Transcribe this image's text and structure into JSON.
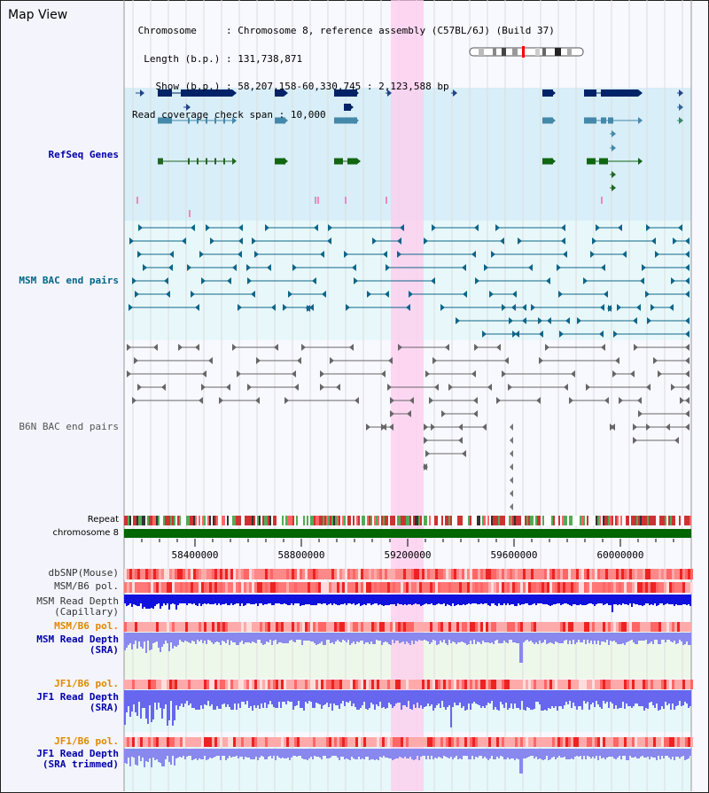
{
  "view": {
    "title": "Map View",
    "chromosome_key": "Chromosome",
    "chromosome_value": "Chromosome 8, reference assembly (C57BL/6J) (Build 37)",
    "length_key": "Length (b.p.)",
    "length_value": "131,738,871",
    "show_key": "Show (b.p.)",
    "show_value": "58,207,158-60,330,745 : 2,123,588 bp",
    "coverage_key": "Read coverage check span",
    "coverage_value": "10,000"
  },
  "tracks": {
    "refseq": {
      "label": "RefSeq Genes",
      "color": "#0000aa"
    },
    "msm_bac": {
      "label": "MSM BAC end pairs",
      "color": "#006688"
    },
    "b6n_bac": {
      "label": "B6N BAC end pairs",
      "color": "#555555"
    },
    "repeat": {
      "label": "Repeat"
    },
    "chromosome": {
      "label": "chromosome 8"
    },
    "dbsnp": {
      "label": "dbSNP(Mouse)"
    },
    "msm_b6_pol_1": {
      "label": "MSM/B6 pol."
    },
    "msm_depth_cap": {
      "label": "MSM Read Depth\n(Capillary)"
    },
    "msm_b6_pol_2": {
      "label": "MSM/B6 pol.",
      "color": "#e08800"
    },
    "msm_depth_sra": {
      "label": "MSM Read Depth\n(SRA)",
      "color": "#0000aa"
    },
    "jf1_b6_pol_1": {
      "label": "JF1/B6 pol.",
      "color": "#e08800"
    },
    "jf1_depth_sra": {
      "label": "JF1 Read Depth\n(SRA)",
      "color": "#0000aa"
    },
    "jf1_b6_pol_2": {
      "label": "JF1/B6 pol.",
      "color": "#e08800"
    },
    "jf1_depth_trim": {
      "label": "JF1 Read Depth\n(SRA trimmed)",
      "color": "#0000aa"
    }
  },
  "axis": {
    "ticks": [
      "58400000",
      "58800000",
      "59200000",
      "59600000",
      "60000000"
    ]
  },
  "highlight": {
    "range": [
      59200000,
      59320000
    ],
    "color": "#ffccee"
  }
}
